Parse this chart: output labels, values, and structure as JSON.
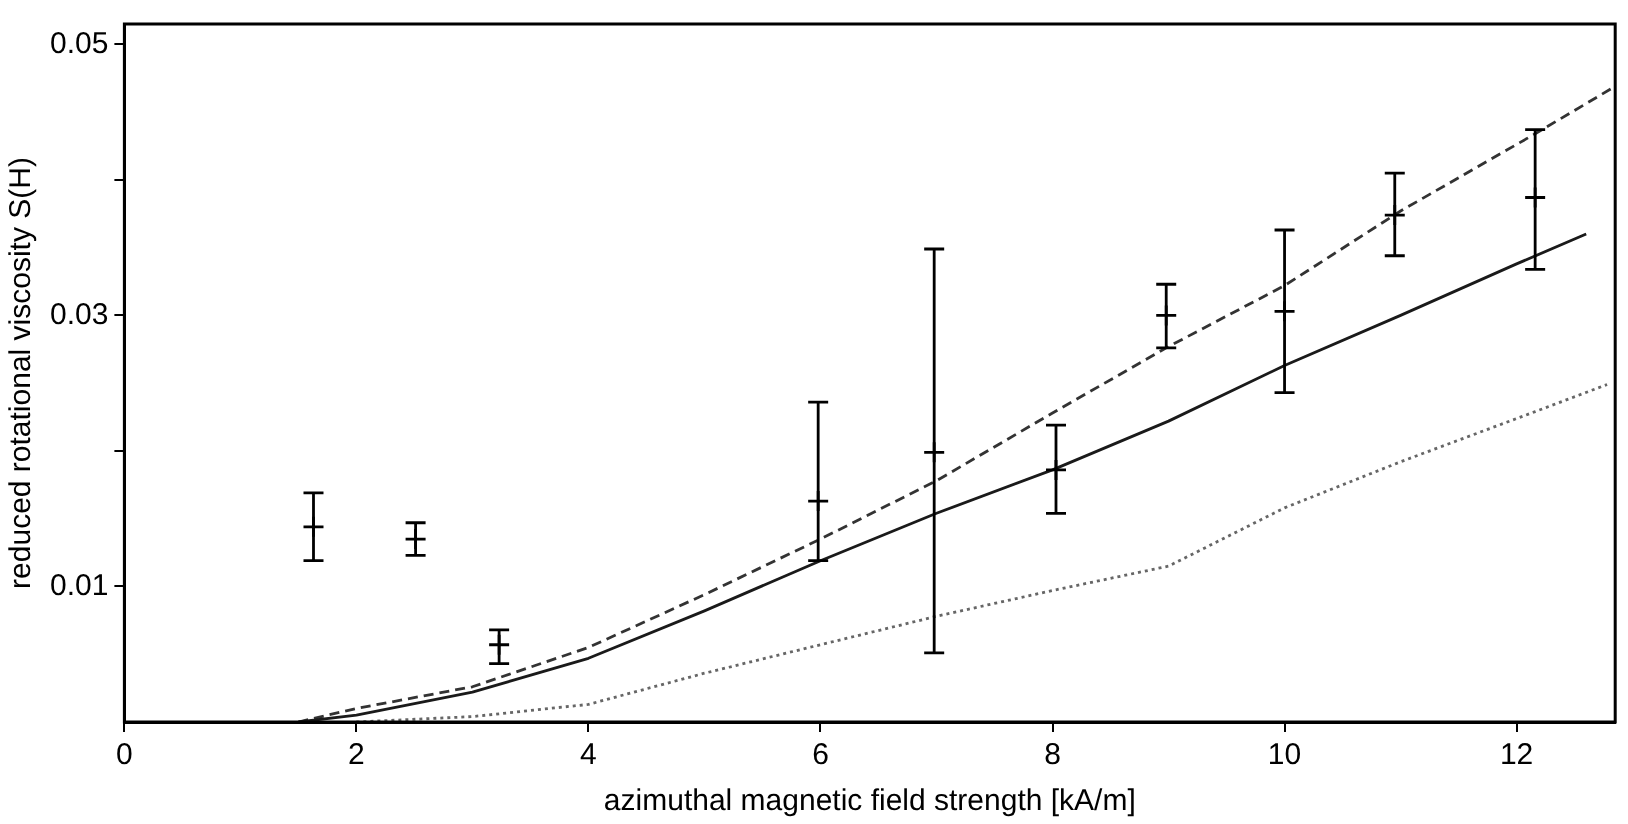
{
  "chart_data": {
    "type": "line",
    "xlabel": "azimuthal magnetic field strength [kA/m]",
    "ylabel": "reduced rotational viscosity S(H)",
    "xlim": [
      0,
      12.85
    ],
    "xticks": [
      0,
      2,
      4,
      6,
      8,
      10,
      12
    ],
    "ylim": [
      0,
      0.0515
    ],
    "yticks": [
      {
        "value": 0.01,
        "label": "0.01"
      },
      {
        "value": 0.02,
        "label": null
      },
      {
        "value": 0.03,
        "label": "0.03"
      },
      {
        "value": 0.04,
        "label": null
      },
      {
        "value": 0.05,
        "label": "0.05"
      }
    ],
    "grid": false,
    "legend": false,
    "series": [
      {
        "type": "scatter",
        "color": "#000000",
        "marker": "cross",
        "x": [
          1.63,
          2.51,
          3.23,
          5.98,
          6.98,
          8.03,
          8.98,
          10.0,
          10.95,
          12.16
        ],
        "values": [
          0.0144,
          0.0135,
          0.0057,
          0.0163,
          0.0199,
          0.0186,
          0.03,
          0.0303,
          0.0374,
          0.0387
        ],
        "errors": [
          [
            0.0119,
            0.0169
          ],
          [
            0.0123,
            0.0147
          ],
          [
            0.0043,
            0.0068
          ],
          [
            0.0119,
            0.0236
          ],
          [
            0.0051,
            0.0349
          ],
          [
            0.0154,
            0.0219
          ],
          [
            0.0276,
            0.0323
          ],
          [
            0.0243,
            0.0363
          ],
          [
            0.0344,
            0.0405
          ],
          [
            0.0334,
            0.0437
          ]
        ]
      },
      {
        "color": "#1a1a1a",
        "line_style": "solid",
        "x": [
          1.5,
          2,
          3,
          4,
          5,
          6,
          7,
          8,
          9,
          10,
          11,
          12,
          12.6
        ],
        "values": [
          0,
          0.0005,
          0.0022,
          0.0047,
          0.0082,
          0.0119,
          0.0154,
          0.0186,
          0.0222,
          0.0263,
          0.03,
          0.0338,
          0.036
        ]
      },
      {
        "color": "#333333",
        "line_style": "dashed",
        "x": [
          1.5,
          2,
          3,
          4,
          5,
          6,
          7,
          8,
          9,
          10,
          11,
          12.16,
          12.85
        ],
        "values": [
          0,
          0.001,
          0.0026,
          0.0055,
          0.0094,
          0.0135,
          0.0178,
          0.0228,
          0.0277,
          0.0322,
          0.0377,
          0.0434,
          0.0469
        ]
      },
      {
        "color": "#666666",
        "line_style": "dotted",
        "x": [
          2,
          3,
          4,
          5,
          6,
          7,
          8,
          9,
          10,
          11,
          12.16,
          12.78
        ],
        "values": [
          0,
          0.0004,
          0.0013,
          0.0036,
          0.0057,
          0.0078,
          0.0097,
          0.0115,
          0.0158,
          0.0192,
          0.0229,
          0.0249
        ]
      }
    ]
  }
}
